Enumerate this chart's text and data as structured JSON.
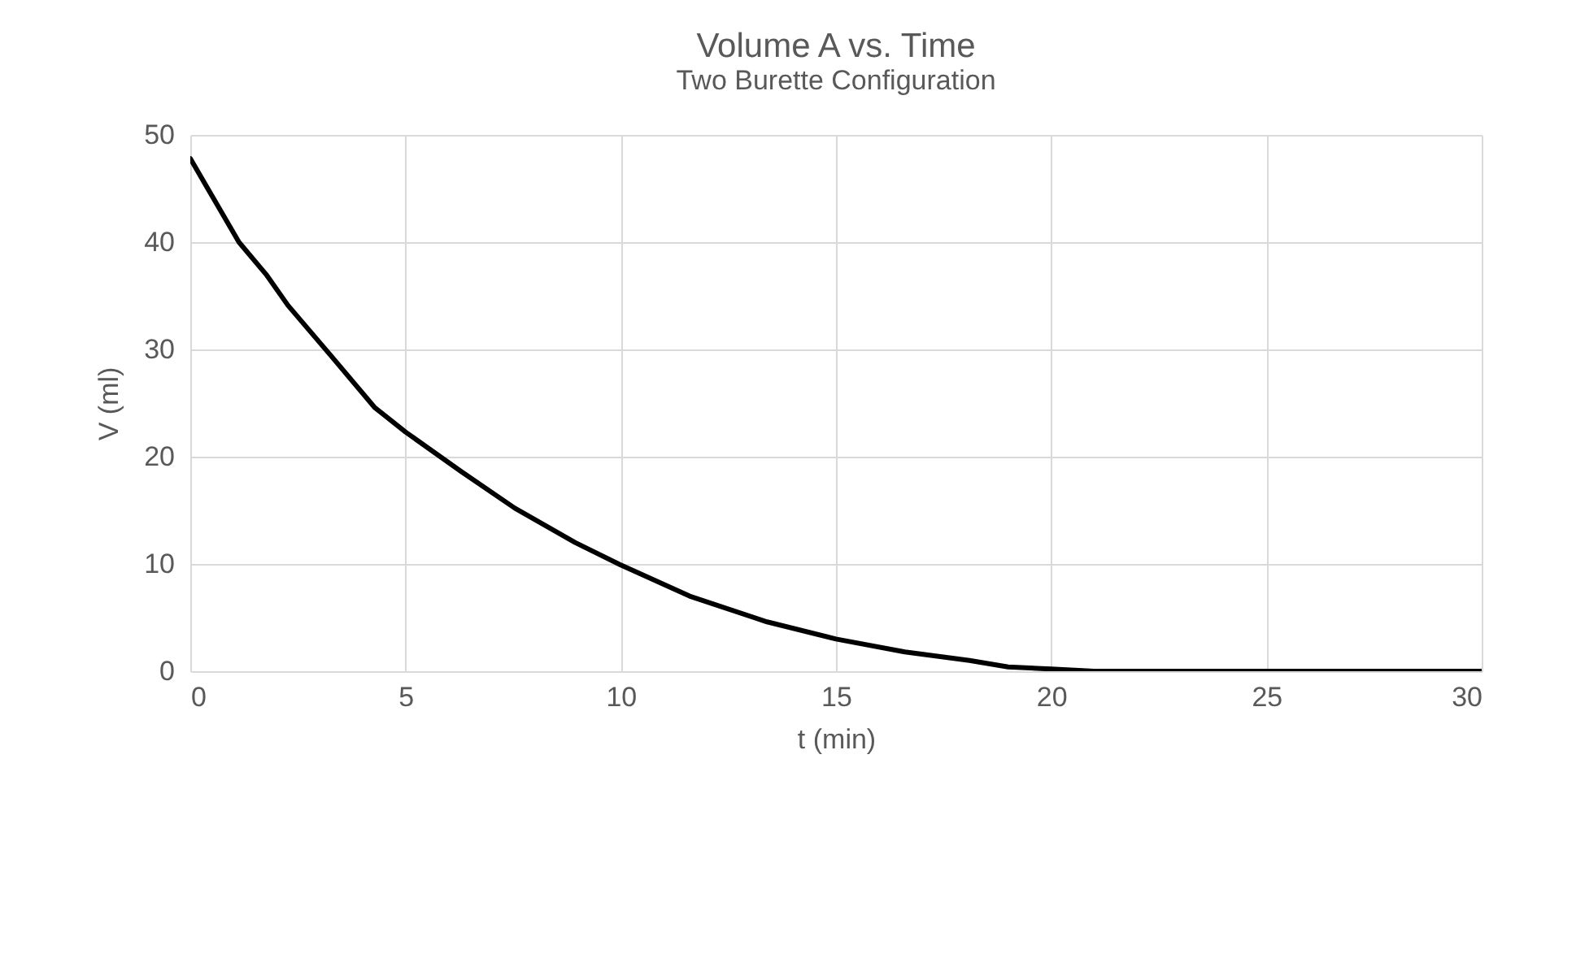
{
  "chart_data": {
    "type": "line",
    "title": "Volume A vs. Time",
    "subtitle": "Two Burette Configuration",
    "xlabel": "t (min)",
    "ylabel": "V (ml)",
    "x": [
      0,
      1.13,
      1.76,
      2.27,
      3.27,
      4.28,
      5,
      6.3,
      7.54,
      8.94,
      10,
      11.6,
      13.4,
      15,
      16.6,
      18.1,
      19,
      20,
      21,
      21.5,
      25,
      30
    ],
    "series": [
      {
        "color": "#000000",
        "values": [
          47.8,
          40,
          37,
          34.1,
          29.4,
          24.6,
          22.3,
          18.6,
          15.2,
          12,
          9.9,
          7,
          4.6,
          3,
          1.8,
          1,
          0.4,
          0.2,
          0,
          0,
          0,
          0
        ]
      }
    ],
    "xlim": [
      0,
      30
    ],
    "xticks": [
      0,
      5,
      10,
      15,
      20,
      25,
      30
    ],
    "ylim": [
      0,
      50
    ],
    "yticks": [
      0,
      10,
      20,
      30,
      40,
      50
    ],
    "grid": true,
    "marker": "none",
    "line_style": "solid"
  }
}
